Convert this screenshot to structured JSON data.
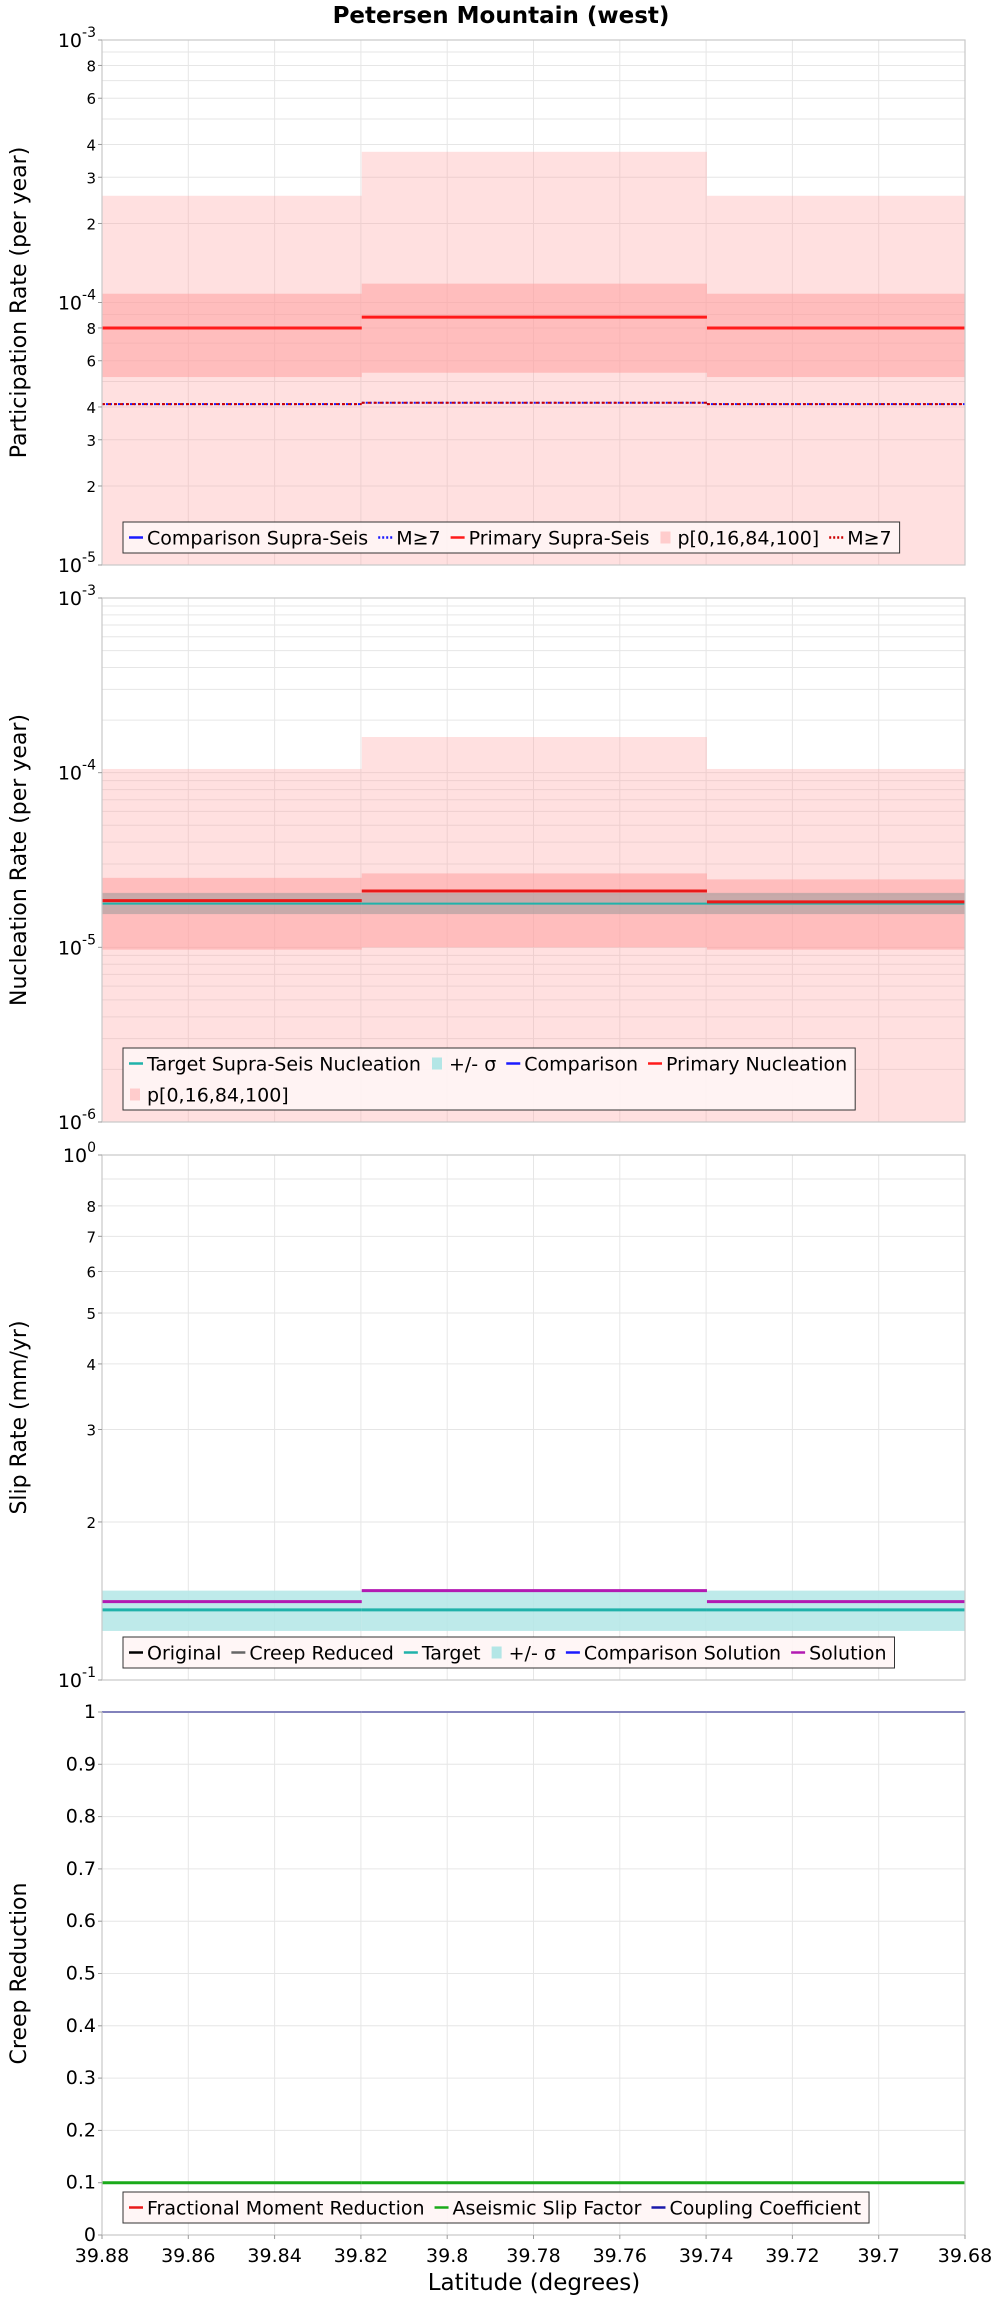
{
  "title": "Petersen Mountain (west)",
  "xlabel": "Latitude (degrees)",
  "x_ticks": [
    "39.88",
    "39.86",
    "39.84",
    "39.82",
    "39.8",
    "39.78",
    "39.76",
    "39.74",
    "39.72",
    "39.7",
    "39.68"
  ],
  "chart_data": [
    {
      "type": "line",
      "ylabel": "Participation Rate (per year)",
      "yscale": "log",
      "ylim": [
        1e-05,
        0.001
      ],
      "xlim": [
        39.88,
        39.68
      ],
      "x_ticks": [
        39.88,
        39.86,
        39.84,
        39.82,
        39.8,
        39.78,
        39.76,
        39.74,
        39.72,
        39.7,
        39.68
      ],
      "y_tick_labels": [
        {
          "v": 0.001,
          "b": "10",
          "e": "-3"
        },
        {
          "v": 0.0008,
          "t": "8"
        },
        {
          "v": 0.0006,
          "t": "6"
        },
        {
          "v": 0.0004,
          "t": "4"
        },
        {
          "v": 0.0003,
          "t": "3"
        },
        {
          "v": 0.0002,
          "t": "2"
        },
        {
          "v": 0.0001,
          "b": "10",
          "e": "-4"
        },
        {
          "v": 8e-05,
          "t": "8"
        },
        {
          "v": 6e-05,
          "t": "6"
        },
        {
          "v": 4e-05,
          "t": "4"
        },
        {
          "v": 3e-05,
          "t": "3"
        },
        {
          "v": 2e-05,
          "t": "2"
        },
        {
          "v": 1e-05,
          "b": "10",
          "e": "-5"
        }
      ],
      "grid": true,
      "segments": [
        [
          39.88,
          39.8198
        ],
        [
          39.8198,
          39.7398
        ],
        [
          39.7398,
          39.68
        ]
      ],
      "bands": [
        {
          "name": "p[0,16,84,100]",
          "color": "#ffa0a0",
          "opacity": 0.32,
          "lower": [
            1e-05,
            1e-05,
            1e-05
          ],
          "upper": [
            0.000255,
            0.000375,
            0.000255
          ]
        },
        {
          "name": "p[0,16,84,100]",
          "color": "#ffa0a0",
          "opacity": 0.55,
          "lower": [
            5.2e-05,
            5.4e-05,
            5.2e-05
          ],
          "upper": [
            0.000108,
            0.000118,
            0.000108
          ]
        }
      ],
      "series": [
        {
          "name": "Comparison Supra-Seis",
          "color": "#1a1aff",
          "dash": "",
          "width": 2,
          "values": [
            null,
            null,
            null
          ]
        },
        {
          "name": "M≥7",
          "color": "#1a1aff",
          "dash": "2,2",
          "width": 2,
          "values": [
            4.1e-05,
            4.15e-05,
            4.1e-05
          ]
        },
        {
          "name": "Primary Supra-Seis",
          "color": "#ff1a1a",
          "dash": "",
          "width": 3,
          "values": [
            8e-05,
            8.8e-05,
            8e-05
          ]
        },
        {
          "name": "M≥7",
          "color": "#cc0000",
          "dash": "3,3",
          "width": 2,
          "values": [
            4.1e-05,
            4.15e-05,
            4.1e-05
          ]
        }
      ],
      "legend": {
        "placement": "bottom",
        "rows": [
          [
            {
              "label": "Comparison Supra-Seis",
              "kind": "line",
              "color": "#1a1aff"
            },
            {
              "label": "M≥7",
              "kind": "dotted",
              "color": "#1a1aff"
            },
            {
              "label": "Primary Supra-Seis",
              "kind": "line",
              "color": "#ff1a1a"
            },
            {
              "label": "p[0,16,84,100]",
              "kind": "patch",
              "color": "#ffcccc"
            },
            {
              "label": "M≥7",
              "kind": "dotted",
              "color": "#cc0000"
            }
          ]
        ]
      }
    },
    {
      "type": "line",
      "ylabel": "Nucleation Rate (per year)",
      "yscale": "log",
      "ylim": [
        1e-06,
        0.001
      ],
      "xlim": [
        39.88,
        39.68
      ],
      "x_ticks": [
        39.88,
        39.86,
        39.84,
        39.82,
        39.8,
        39.78,
        39.76,
        39.74,
        39.72,
        39.7,
        39.68
      ],
      "y_tick_labels": [
        {
          "v": 0.001,
          "b": "10",
          "e": "-3"
        },
        {
          "v": 0.0001,
          "b": "10",
          "e": "-4"
        },
        {
          "v": 1e-05,
          "b": "10",
          "e": "-5"
        },
        {
          "v": 1e-06,
          "b": "10",
          "e": "-6"
        }
      ],
      "grid": true,
      "segments": [
        [
          39.88,
          39.8198
        ],
        [
          39.8198,
          39.7398
        ],
        [
          39.7398,
          39.68
        ]
      ],
      "bands": [
        {
          "name": "p[0,16,84,100]",
          "color": "#ffa0a0",
          "opacity": 0.32,
          "lower": [
            1e-06,
            1e-06,
            1e-06
          ],
          "upper": [
            0.000105,
            0.00016,
            0.000105
          ]
        },
        {
          "name": "p[0,16,84,100]",
          "color": "#ffa0a0",
          "opacity": 0.55,
          "lower": [
            9.7e-06,
            1e-05,
            9.7e-06
          ],
          "upper": [
            2.5e-05,
            2.65e-05,
            2.45e-05
          ]
        },
        {
          "name": "+/- σ",
          "color": "#9a9a9a",
          "opacity": 0.55,
          "lower": [
            1.55e-05,
            1.55e-05,
            1.55e-05
          ],
          "upper": [
            2.05e-05,
            2.05e-05,
            2.05e-05
          ]
        }
      ],
      "series": [
        {
          "name": "Target Supra-Seis Nucleation",
          "color": "#20b2aa",
          "dash": "",
          "width": 2,
          "values": [
            1.78e-05,
            1.78e-05,
            1.78e-05
          ]
        },
        {
          "name": "Comparison",
          "color": "#1a1aff",
          "dash": "",
          "width": 2,
          "values": [
            null,
            null,
            null
          ]
        },
        {
          "name": "Primary Nucleation",
          "color": "#e81a1a",
          "dash": "",
          "width": 3,
          "values": [
            1.85e-05,
            2.1e-05,
            1.82e-05
          ]
        }
      ],
      "legend": {
        "placement": "bottom",
        "rows": [
          [
            {
              "label": "Target Supra-Seis Nucleation",
              "kind": "line",
              "color": "#20b2aa"
            },
            {
              "label": "+/- σ",
              "kind": "patch",
              "color": "#b3e6e6"
            },
            {
              "label": "Comparison",
              "kind": "line",
              "color": "#1a1aff"
            },
            {
              "label": "Primary Nucleation",
              "kind": "line",
              "color": "#ff1a1a"
            }
          ],
          [
            {
              "label": "p[0,16,84,100]",
              "kind": "patch",
              "color": "#ffcccc"
            }
          ]
        ]
      }
    },
    {
      "type": "line",
      "ylabel": "Slip Rate (mm/yr)",
      "yscale": "log",
      "ylim": [
        0.1,
        1
      ],
      "xlim": [
        39.88,
        39.68
      ],
      "x_ticks": [
        39.88,
        39.86,
        39.84,
        39.82,
        39.8,
        39.78,
        39.76,
        39.74,
        39.72,
        39.7,
        39.68
      ],
      "y_tick_labels": [
        {
          "v": 1,
          "b": "10",
          "e": "0"
        },
        {
          "v": 0.8,
          "t": "8"
        },
        {
          "v": 0.7,
          "t": "7"
        },
        {
          "v": 0.6,
          "t": "6"
        },
        {
          "v": 0.5,
          "t": "5"
        },
        {
          "v": 0.4,
          "t": "4"
        },
        {
          "v": 0.3,
          "t": "3"
        },
        {
          "v": 0.2,
          "t": "2"
        },
        {
          "v": 0.1,
          "b": "10",
          "e": "-1"
        }
      ],
      "grid": true,
      "segments": [
        [
          39.88,
          39.8198
        ],
        [
          39.8198,
          39.7398
        ],
        [
          39.7398,
          39.68
        ]
      ],
      "bands": [
        {
          "name": "+/- σ",
          "color": "#b3e6e6",
          "opacity": 0.85,
          "lower": [
            0.124,
            0.124,
            0.124
          ],
          "upper": [
            0.148,
            0.148,
            0.148
          ]
        }
      ],
      "series": [
        {
          "name": "Original",
          "color": "#000000",
          "dash": "",
          "width": 2,
          "values": [
            null,
            null,
            null
          ]
        },
        {
          "name": "Creep Reduced",
          "color": "#666666",
          "dash": "",
          "width": 2,
          "values": [
            null,
            null,
            null
          ]
        },
        {
          "name": "Target",
          "color": "#20b2aa",
          "dash": "",
          "width": 3,
          "values": [
            0.136,
            0.136,
            0.136
          ]
        },
        {
          "name": "Comparison Solution",
          "color": "#1a1aff",
          "dash": "",
          "width": 2,
          "values": [
            null,
            null,
            null
          ]
        },
        {
          "name": "Solution",
          "color": "#b21ab2",
          "dash": "",
          "width": 3,
          "values": [
            0.141,
            0.148,
            0.141
          ]
        }
      ],
      "legend": {
        "placement": "bottom",
        "rows": [
          [
            {
              "label": "Original",
              "kind": "line",
              "color": "#000000"
            },
            {
              "label": "Creep Reduced",
              "kind": "line",
              "color": "#666666"
            },
            {
              "label": "Target",
              "kind": "line",
              "color": "#20b2aa"
            },
            {
              "label": "+/- σ",
              "kind": "patch",
              "color": "#b3e6e6"
            },
            {
              "label": "Comparison Solution",
              "kind": "line",
              "color": "#1a1aff"
            },
            {
              "label": "Solution",
              "kind": "line",
              "color": "#b21ab2"
            }
          ]
        ]
      }
    },
    {
      "type": "line",
      "ylabel": "Creep Reduction",
      "yscale": "linear",
      "ylim": [
        0,
        1
      ],
      "xlim": [
        39.88,
        39.68
      ],
      "x_ticks": [
        39.88,
        39.86,
        39.84,
        39.82,
        39.8,
        39.78,
        39.76,
        39.74,
        39.72,
        39.7,
        39.68
      ],
      "y_tick_labels": [
        {
          "v": 1,
          "t": "1"
        },
        {
          "v": 0.9,
          "t": "0.9"
        },
        {
          "v": 0.8,
          "t": "0.8"
        },
        {
          "v": 0.7,
          "t": "0.7"
        },
        {
          "v": 0.6,
          "t": "0.6"
        },
        {
          "v": 0.5,
          "t": "0.5"
        },
        {
          "v": 0.4,
          "t": "0.4"
        },
        {
          "v": 0.3,
          "t": "0.3"
        },
        {
          "v": 0.2,
          "t": "0.2"
        },
        {
          "v": 0.1,
          "t": "0.1"
        },
        {
          "v": 0,
          "t": "0"
        }
      ],
      "grid": true,
      "segments": [
        [
          39.88,
          39.8198
        ],
        [
          39.8198,
          39.7398
        ],
        [
          39.7398,
          39.68
        ]
      ],
      "bands": [],
      "series": [
        {
          "name": "Fractional Moment Reduction",
          "color": "#e81a1a",
          "dash": "",
          "width": 2,
          "values": [
            null,
            null,
            null
          ]
        },
        {
          "name": "Aseismic Slip Factor",
          "color": "#1aaa1a",
          "dash": "",
          "width": 3,
          "values": [
            0.1,
            0.1,
            0.1
          ]
        },
        {
          "name": "Coupling Coefficient",
          "color": "#1a1aaa",
          "dash": "",
          "width": 2,
          "values": [
            1,
            1,
            1
          ]
        }
      ],
      "legend": {
        "placement": "bottom",
        "rows": [
          [
            {
              "label": "Fractional Moment Reduction",
              "kind": "line",
              "color": "#e81a1a"
            },
            {
              "label": "Aseismic Slip Factor",
              "kind": "line",
              "color": "#1aaa1a"
            },
            {
              "label": "Coupling Coefficient",
              "kind": "line",
              "color": "#1a1aaa"
            }
          ]
        ]
      }
    }
  ]
}
